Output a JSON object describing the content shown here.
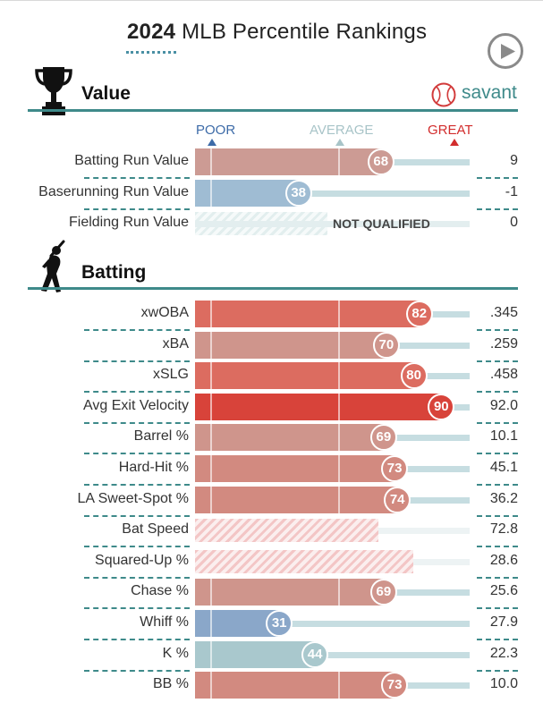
{
  "header": {
    "year": "2024",
    "title": "MLB Percentile Rankings"
  },
  "colors": {
    "accent": "#3e8a8a",
    "poor": "#3d6ba8",
    "average": "#a8c4c8",
    "great": "#d22d2d"
  },
  "scale": {
    "poor": "POOR",
    "average": "AVERAGE",
    "great": "GREAT"
  },
  "sections": {
    "value": {
      "label": "Value",
      "icon": "trophy-icon"
    },
    "batting": {
      "label": "Batting",
      "icon": "batter-icon"
    }
  },
  "savant": {
    "label": "savant",
    "icon": "baseball-icon"
  },
  "value_metrics": [
    {
      "name": "Batting Run Value",
      "percentile": 68,
      "value": "9",
      "color": "#cc9b94"
    },
    {
      "name": "Baserunning Run Value",
      "percentile": 38,
      "value": "-1",
      "color": "#9fbcd3"
    },
    {
      "name": "Fielding Run Value",
      "percentile": null,
      "value": "0",
      "status": "NOT QUALIFIED"
    }
  ],
  "batting_metrics": [
    {
      "name": "xwOBA",
      "percentile": 82,
      "value": ".345",
      "color": "#dc6c60"
    },
    {
      "name": "xBA",
      "percentile": 70,
      "value": ".259",
      "color": "#cf958c"
    },
    {
      "name": "xSLG",
      "percentile": 80,
      "value": ".458",
      "color": "#dc6c60"
    },
    {
      "name": "Avg Exit Velocity",
      "percentile": 90,
      "value": "92.0",
      "color": "#d8433a"
    },
    {
      "name": "Barrel %",
      "percentile": 69,
      "value": "10.1",
      "color": "#cf958c"
    },
    {
      "name": "Hard-Hit %",
      "percentile": 73,
      "value": "45.1",
      "color": "#d28a80"
    },
    {
      "name": "LA Sweet-Spot %",
      "percentile": 74,
      "value": "36.2",
      "color": "#d28a80"
    },
    {
      "name": "Bat Speed",
      "percentile": null,
      "value": "72.8"
    },
    {
      "name": "Squared-Up %",
      "percentile": null,
      "value": "28.6"
    },
    {
      "name": "Chase %",
      "percentile": 69,
      "value": "25.6",
      "color": "#cf958c"
    },
    {
      "name": "Whiff %",
      "percentile": 31,
      "value": "27.9",
      "color": "#8aa7c9"
    },
    {
      "name": "K %",
      "percentile": 44,
      "value": "22.3",
      "color": "#a9c8cd"
    },
    {
      "name": "BB %",
      "percentile": 73,
      "value": "10.0",
      "color": "#d28a80"
    }
  ]
}
